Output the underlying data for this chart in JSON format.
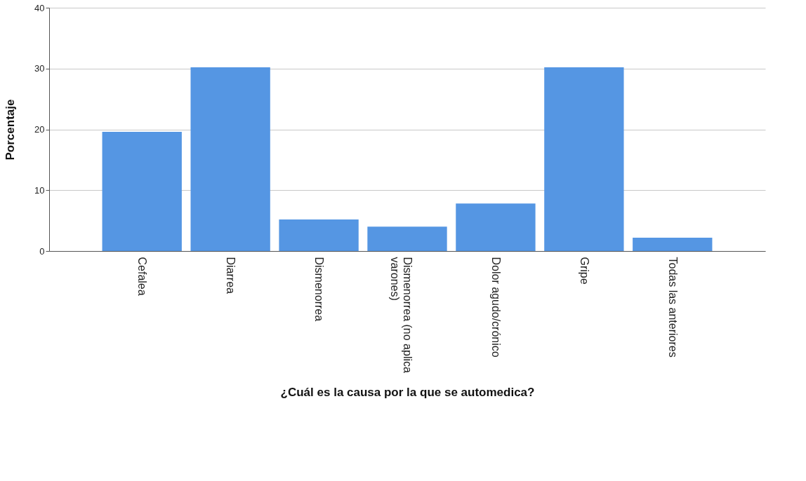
{
  "chart_data": {
    "type": "bar",
    "xlabel": "¿Cuál es la causa por la que se automedica?",
    "ylabel": "Porcentaje",
    "categories": [
      "Cefalea",
      "Diarrea",
      "Dismenorrea",
      "Dismenorrea (no aplica varones)",
      "Dolor agudo/crónico",
      "Gripe",
      "Todas las anteriores"
    ],
    "values": [
      19.6,
      30.2,
      5.2,
      4.0,
      7.8,
      30.2,
      2.2
    ],
    "color": "#5596e3",
    "ylim": [
      0,
      40
    ],
    "yticks": [
      0,
      10,
      20,
      30,
      40
    ],
    "grid": "y"
  }
}
